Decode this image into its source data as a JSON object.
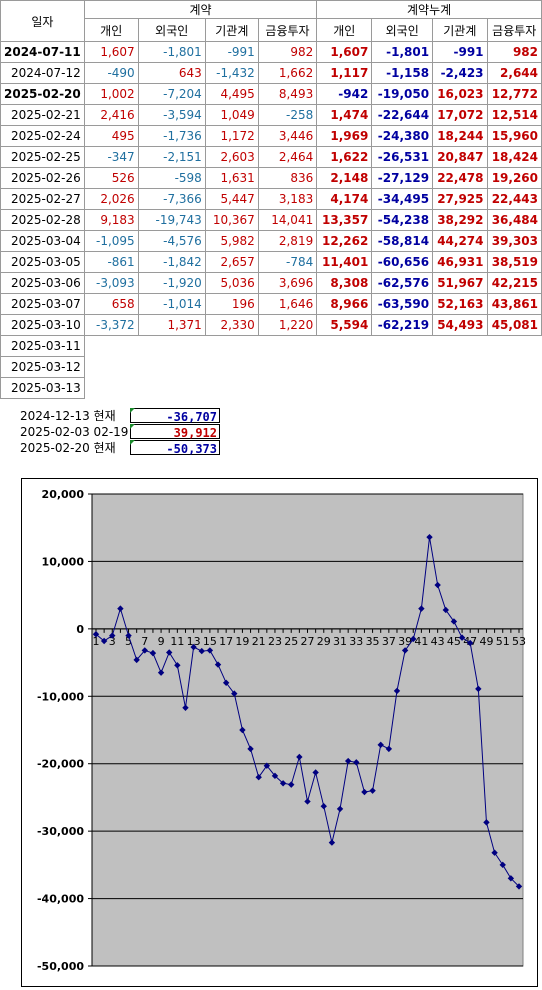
{
  "table": {
    "header_date": "일자",
    "group_daily": "계약",
    "group_cumulative": "계약누계",
    "columns": [
      "개인",
      "외국인",
      "기관계",
      "금융투자"
    ],
    "rows": [
      {
        "date": "2024-07-11",
        "date_bold": true,
        "d": [
          "1,607",
          "-1,801",
          "-991",
          "982"
        ],
        "c": [
          "1,607",
          "-1,801",
          "-991",
          "982"
        ]
      },
      {
        "date": "2024-07-12",
        "date_bold": false,
        "d": [
          "-490",
          "643",
          "-1,432",
          "1,662"
        ],
        "c": [
          "1,117",
          "-1,158",
          "-2,423",
          "2,644"
        ]
      },
      {
        "date": "2025-02-20",
        "date_bold": true,
        "d": [
          "1,002",
          "-7,204",
          "4,495",
          "8,493"
        ],
        "c": [
          "-942",
          "-19,050",
          "16,023",
          "12,772"
        ]
      },
      {
        "date": "2025-02-21",
        "date_bold": false,
        "d": [
          "2,416",
          "-3,594",
          "1,049",
          "-258"
        ],
        "c": [
          "1,474",
          "-22,644",
          "17,072",
          "12,514"
        ]
      },
      {
        "date": "2025-02-24",
        "date_bold": false,
        "d": [
          "495",
          "-1,736",
          "1,172",
          "3,446"
        ],
        "c": [
          "1,969",
          "-24,380",
          "18,244",
          "15,960"
        ]
      },
      {
        "date": "2025-02-25",
        "date_bold": false,
        "d": [
          "-347",
          "-2,151",
          "2,603",
          "2,464"
        ],
        "c": [
          "1,622",
          "-26,531",
          "20,847",
          "18,424"
        ]
      },
      {
        "date": "2025-02-26",
        "date_bold": false,
        "d": [
          "526",
          "-598",
          "1,631",
          "836"
        ],
        "c": [
          "2,148",
          "-27,129",
          "22,478",
          "19,260"
        ]
      },
      {
        "date": "2025-02-27",
        "date_bold": false,
        "d": [
          "2,026",
          "-7,366",
          "5,447",
          "3,183"
        ],
        "c": [
          "4,174",
          "-34,495",
          "27,925",
          "22,443"
        ]
      },
      {
        "date": "2025-02-28",
        "date_bold": false,
        "d": [
          "9,183",
          "-19,743",
          "10,367",
          "14,041"
        ],
        "c": [
          "13,357",
          "-54,238",
          "38,292",
          "36,484"
        ]
      },
      {
        "date": "2025-03-04",
        "date_bold": false,
        "d": [
          "-1,095",
          "-4,576",
          "5,982",
          "2,819"
        ],
        "c": [
          "12,262",
          "-58,814",
          "44,274",
          "39,303"
        ]
      },
      {
        "date": "2025-03-05",
        "date_bold": false,
        "d": [
          "-861",
          "-1,842",
          "2,657",
          "-784"
        ],
        "c": [
          "11,401",
          "-60,656",
          "46,931",
          "38,519"
        ]
      },
      {
        "date": "2025-03-06",
        "date_bold": false,
        "d": [
          "-3,093",
          "-1,920",
          "5,036",
          "3,696"
        ],
        "c": [
          "8,308",
          "-62,576",
          "51,967",
          "42,215"
        ]
      },
      {
        "date": "2025-03-07",
        "date_bold": false,
        "d": [
          "658",
          "-1,014",
          "196",
          "1,646"
        ],
        "c": [
          "8,966",
          "-63,590",
          "52,163",
          "43,861"
        ]
      },
      {
        "date": "2025-03-10",
        "date_bold": false,
        "d": [
          "-3,372",
          "1,371",
          "2,330",
          "1,220"
        ],
        "c": [
          "5,594",
          "-62,219",
          "54,493",
          "45,081"
        ]
      },
      {
        "date": "2025-03-11",
        "date_bold": false,
        "d": null,
        "c": null
      },
      {
        "date": "2025-03-12",
        "date_bold": false,
        "d": null,
        "c": null
      },
      {
        "date": "2025-03-13",
        "date_bold": false,
        "d": null,
        "c": null
      }
    ]
  },
  "colors": {
    "positive": "#c00000",
    "negative": "#1f6f9f",
    "cum_positive": "#c00000",
    "cum_negative": "#0000a0",
    "plot_bg": "#c0c0c0",
    "series": "#000080"
  },
  "summary": [
    {
      "label": "2024-12-13 현재",
      "value": "-36,707",
      "color": "#0000a0"
    },
    {
      "label": "2025-02-03 02-19",
      "value": "39,912",
      "color": "#c00000"
    },
    {
      "label": "2025-02-20 현재",
      "value": "-50,373",
      "color": "#0000a0"
    }
  ],
  "chart_data": {
    "type": "line",
    "title": "",
    "xlabel": "",
    "ylabel": "",
    "ylim": [
      -50000,
      20000
    ],
    "yticks": [
      20000,
      10000,
      0,
      -10000,
      -20000,
      -30000,
      -40000,
      -50000
    ],
    "ytick_labels": [
      "20,000",
      "10,000",
      "0",
      "-10,000",
      "-20,000",
      "-30,000",
      "-40,000",
      "-50,000"
    ],
    "xtick_labels": [
      "1",
      "3",
      "5",
      "7",
      "9",
      "11",
      "13",
      "15",
      "17",
      "19",
      "21",
      "23",
      "25",
      "27",
      "29",
      "31",
      "33",
      "35",
      "37",
      "39",
      "41",
      "43",
      "45",
      "47",
      "49",
      "51",
      "53"
    ],
    "grid": true,
    "x": [
      1,
      2,
      3,
      4,
      5,
      6,
      7,
      8,
      9,
      10,
      11,
      12,
      13,
      14,
      15,
      16,
      17,
      18,
      19,
      20,
      21,
      22,
      23,
      24,
      25,
      26,
      27,
      28,
      29,
      30,
      31,
      32,
      33,
      34,
      35,
      36,
      37,
      38,
      39,
      40,
      41,
      42,
      43,
      44,
      45,
      46,
      47,
      48,
      49,
      50,
      51,
      52,
      53
    ],
    "series": [
      {
        "values": [
          -800,
          -1800,
          -1000,
          3000,
          -1000,
          -4600,
          -3200,
          -3600,
          -6500,
          -3500,
          -5400,
          -11700,
          -2700,
          -3300,
          -3200,
          -5300,
          -8000,
          -9600,
          -15000,
          -17800,
          -22000,
          -20300,
          -21800,
          -22900,
          -23100,
          -19000,
          -25600,
          -21300,
          -26300,
          -31700,
          -26700,
          -19600,
          -19800,
          -24200,
          -24000,
          -17200,
          -17800,
          -9200,
          -3200,
          -1500,
          3000,
          13600,
          6500,
          2800,
          1100,
          -1300,
          -2100,
          -8900,
          -28700,
          -33200,
          -35000,
          -37000,
          -38200
        ]
      }
    ]
  }
}
